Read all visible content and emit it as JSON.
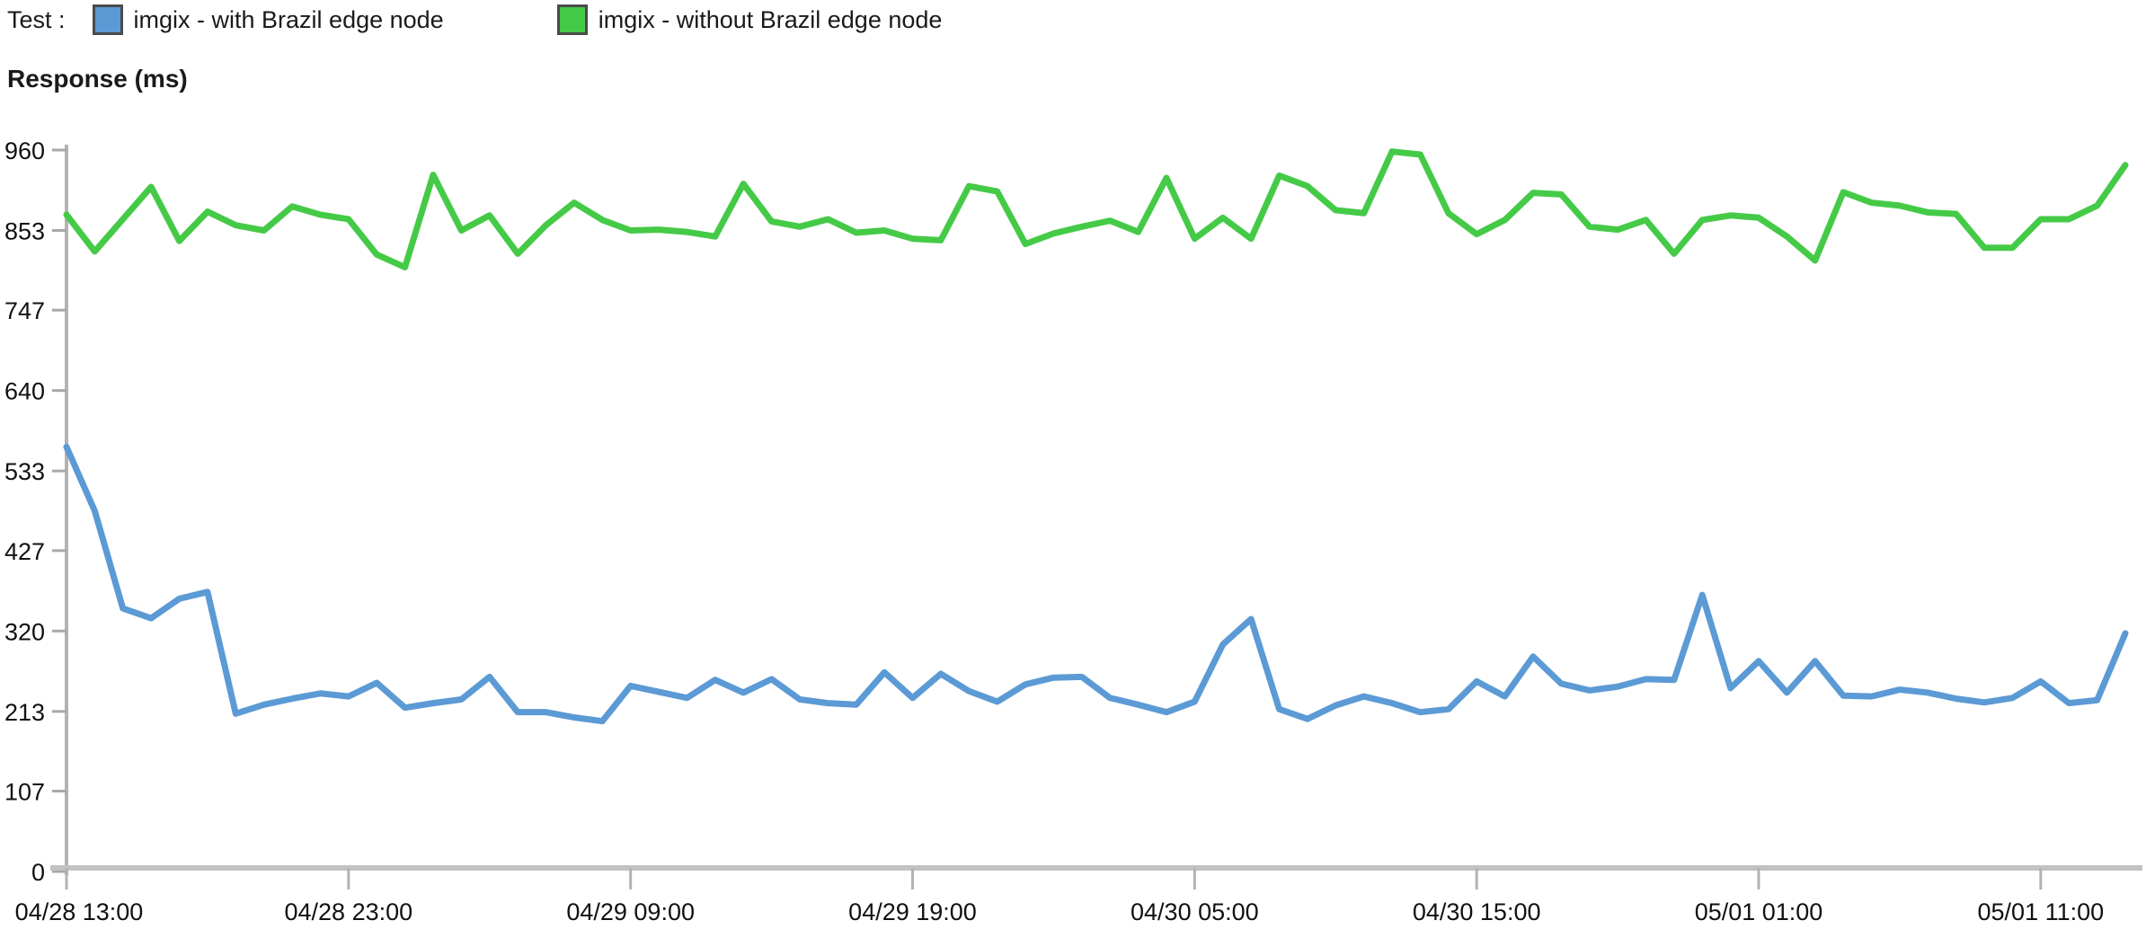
{
  "legend": {
    "prefix": "Test :",
    "items": [
      {
        "label": "imgix - with Brazil edge node",
        "color": "#5B9AD5"
      },
      {
        "label": "imgix - without Brazil edge node",
        "color": "#45CA47"
      }
    ]
  },
  "axis_title": "Response (ms)",
  "chart_data": {
    "type": "line",
    "title": "",
    "xlabel": "",
    "ylabel": "Response (ms)",
    "ylim": [
      0,
      960
    ],
    "grid": false,
    "legend_position": "top-left",
    "axis_color": "#b3b3b3",
    "tick_color": "#a8a8a8",
    "x_axis_color": "#c2c2c2",
    "tick_label_color": "#111111",
    "y_ticks": [
      0,
      107,
      213,
      320,
      427,
      533,
      640,
      747,
      853,
      960
    ],
    "x_tick_labels": [
      "04/28 13:00",
      "04/28 23:00",
      "04/29 09:00",
      "04/29 19:00",
      "04/30 05:00",
      "04/30 15:00",
      "05/01 01:00",
      "05/01 11:00"
    ],
    "x_ticks_every_n_points": 10,
    "series": [
      {
        "name": "imgix - with Brazil edge node",
        "color": "#5B9AD5",
        "values": [
          565,
          480,
          350,
          337,
          363,
          372,
          210,
          222,
          230,
          237,
          233,
          251,
          218,
          224,
          229,
          259,
          212,
          212,
          205,
          200,
          247,
          239,
          231,
          255,
          238,
          256,
          229,
          224,
          222,
          265,
          231,
          263,
          240,
          226,
          249,
          258,
          259,
          231,
          222,
          212,
          226,
          302,
          336,
          216,
          203,
          221,
          233,
          224,
          212,
          216,
          253,
          233,
          286,
          250,
          241,
          246,
          256,
          255,
          368,
          244,
          280,
          238,
          280,
          234,
          233,
          242,
          238,
          230,
          225,
          231,
          253,
          224,
          228,
          317
        ]
      },
      {
        "name": "imgix - without Brazil edge node",
        "color": "#45CA47",
        "values": [
          874,
          825,
          868,
          911,
          839,
          878,
          860,
          853,
          885,
          874,
          868,
          821,
          804,
          927,
          853,
          873,
          822,
          860,
          890,
          867,
          853,
          854,
          851,
          845,
          915,
          865,
          858,
          868,
          850,
          853,
          842,
          840,
          912,
          905,
          835,
          849,
          858,
          866,
          851,
          923,
          842,
          870,
          842,
          926,
          912,
          880,
          876,
          958,
          954,
          876,
          848,
          867,
          903,
          901,
          858,
          854,
          867,
          822,
          867,
          873,
          870,
          845,
          813,
          904,
          890,
          886,
          877,
          875,
          830,
          830,
          868,
          868,
          886,
          940
        ]
      }
    ]
  }
}
